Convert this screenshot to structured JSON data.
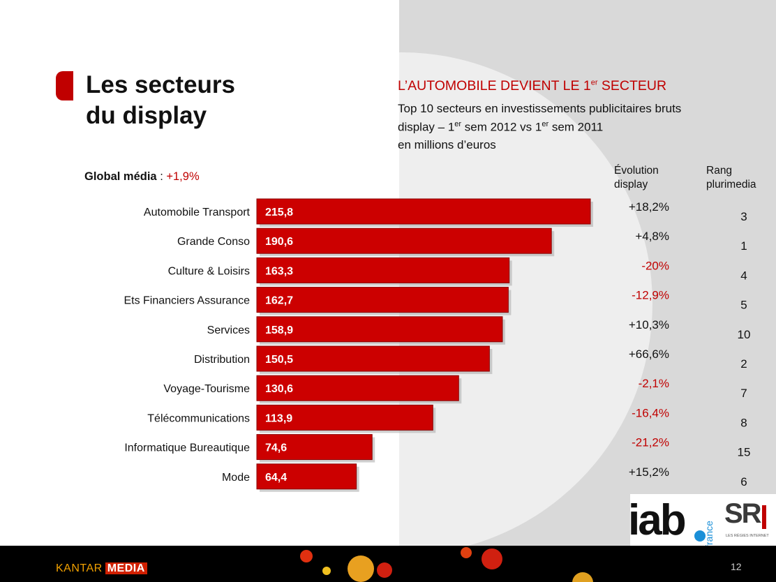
{
  "slide": {
    "title": "Les secteurs\ndu display",
    "headline_main": "L’AUTOMOBILE DEVIENT LE 1",
    "headline_sup": "er",
    "headline_end": " SECTEUR",
    "subtitle_line1": "Top 10 secteurs en investissements publicitaires bruts",
    "subtitle_line2_a": "display – 1",
    "subtitle_line2_sup": "er",
    "subtitle_line2_b": " sem 2012 vs 1",
    "subtitle_line2_sup2": "er",
    "subtitle_line2_c": " sem 2011",
    "subtitle_line3": "en millions d’euros",
    "global_label": "Global média",
    "global_sep": " : ",
    "global_value": "+1,9%",
    "col_evolution": "Évolution\ndisplay",
    "col_rang": "Rang\nplurimedia",
    "page_number": "12"
  },
  "footer": {
    "brand": "KANTAR",
    "brand_tag": "MEDIA"
  },
  "logos": {
    "iab": "iab",
    "iab_sub": "france",
    "sri": "SR",
    "sri_tag": "LES RÉGIES INTERNET"
  },
  "colors": {
    "accent": "#c00000",
    "bar": "#cc0000",
    "bar_dark": "#8a0000",
    "positive": "#111111",
    "negative": "#c00000"
  },
  "chart_data": {
    "type": "bar",
    "orientation": "horizontal",
    "categories": [
      "Automobile Transport",
      "Grande Conso",
      "Culture & Loisirs",
      "Ets Financiers Assurance",
      "Services",
      "Distribution",
      "Voyage-Tourisme",
      "Télécommunications",
      "Informatique Bureautique",
      "Mode"
    ],
    "values": [
      215.8,
      190.6,
      163.3,
      162.7,
      158.9,
      150.5,
      130.6,
      113.9,
      74.6,
      64.4
    ],
    "value_labels": [
      "215,8",
      "190,6",
      "163,3",
      "162,7",
      "158,9",
      "150,5",
      "130,6",
      "113,9",
      "74,6",
      "64,4"
    ],
    "evolution": [
      "+18,2%",
      "+4,8%",
      "-20%",
      "-12,9%",
      "+10,3%",
      "+66,6%",
      "-2,1%",
      "-16,4%",
      "-21,2%",
      "+15,2%"
    ],
    "rang": [
      "3",
      "1",
      "4",
      "5",
      "10",
      "2",
      "7",
      "8",
      "15",
      "6"
    ],
    "xlim": [
      0,
      215.8
    ],
    "grid": false
  }
}
